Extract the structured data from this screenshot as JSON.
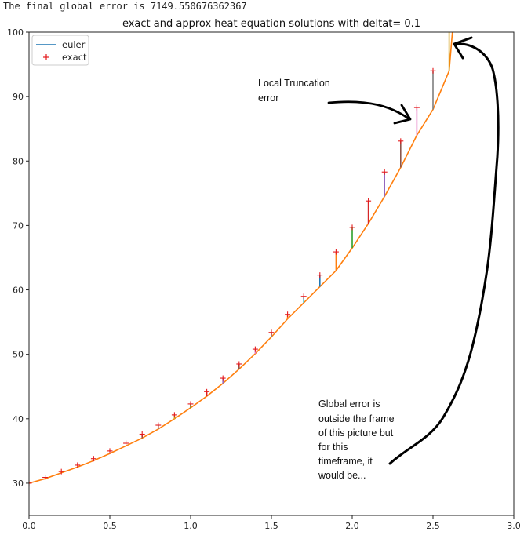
{
  "console_line": "The final global error is 7149.550676362367",
  "chart_data": {
    "type": "line",
    "title": "exact and approx heat equation solutions with deltat=  0.1",
    "xlabel": "",
    "ylabel": "",
    "xlim": [
      0.0,
      3.0
    ],
    "ylim": [
      25,
      100
    ],
    "xticks": [
      "0.0",
      "0.5",
      "1.0",
      "1.5",
      "2.0",
      "2.5",
      "3.0"
    ],
    "yticks": [
      "30",
      "40",
      "50",
      "60",
      "70",
      "80",
      "90",
      "100"
    ],
    "grid": false,
    "legend_position": "top-left",
    "legend": [
      {
        "label": "euler",
        "style": "line",
        "color": "#1f77b4"
      },
      {
        "label": "exact",
        "style": "plus",
        "color": "#e41a1c"
      }
    ],
    "curve": {
      "color": "#ff7f0e",
      "x": [
        0.0,
        0.1,
        0.2,
        0.3,
        0.4,
        0.5,
        0.6,
        0.7,
        0.8,
        0.9,
        1.0,
        1.1,
        1.2,
        1.3,
        1.4,
        1.5,
        1.6,
        1.7,
        1.8,
        1.9,
        2.0,
        2.1,
        2.2,
        2.3,
        2.4,
        2.5,
        2.6,
        2.62
      ],
      "y": [
        30.0,
        30.7,
        31.6,
        32.5,
        33.5,
        34.6,
        35.8,
        37.0,
        38.4,
        40.0,
        41.7,
        43.5,
        45.5,
        47.7,
        50.1,
        52.7,
        55.5,
        58.0,
        60.5,
        63.0,
        66.5,
        70.3,
        74.5,
        79.0,
        84.0,
        88.0,
        94.0,
        100.0
      ]
    },
    "vertical_segment": {
      "x": 2.6,
      "y0": 94.0,
      "y1": 100.0,
      "color": "#d4a017"
    },
    "exact_points": {
      "x": [
        0.0,
        0.1,
        0.2,
        0.3,
        0.4,
        0.5,
        0.6,
        0.7,
        0.8,
        0.9,
        1.0,
        1.1,
        1.2,
        1.3,
        1.4,
        1.5,
        1.6,
        1.7,
        1.8,
        1.9,
        2.0,
        2.1,
        2.2,
        2.3,
        2.4,
        2.5
      ],
      "y": [
        30.0,
        30.9,
        31.8,
        32.8,
        33.8,
        35.0,
        36.2,
        37.6,
        39.0,
        40.6,
        42.3,
        44.2,
        46.3,
        48.5,
        50.8,
        53.4,
        56.2,
        59.0,
        62.3,
        65.9,
        69.7,
        73.8,
        78.3,
        83.1,
        88.3,
        94.0
      ]
    },
    "error_bars": {
      "x": [
        0.7,
        0.8,
        0.9,
        1.0,
        1.1,
        1.2,
        1.3,
        1.4,
        1.5,
        1.6,
        1.7,
        1.8,
        1.9,
        2.0,
        2.1,
        2.2,
        2.3,
        2.4,
        2.5
      ],
      "colors": [
        "#8c564b",
        "#7f7f7f",
        "#bcbd22",
        "#2ca02c",
        "#d62728",
        "#9467bd",
        "#8c564b",
        "#e377c2",
        "#7f7f7f",
        "#ff7f0e",
        "#17becf",
        "#1f77b4",
        "#ff7f0e",
        "#2ca02c",
        "#d62728",
        "#9467bd",
        "#8c564b",
        "#e377c2",
        "#7f7f7f"
      ]
    },
    "annotations": {
      "local": [
        "Local Truncation",
        "error"
      ],
      "global": [
        "Global error is",
        "outside the frame",
        "of this picture but",
        "for this",
        "timeframe, it",
        "would be..."
      ]
    }
  }
}
